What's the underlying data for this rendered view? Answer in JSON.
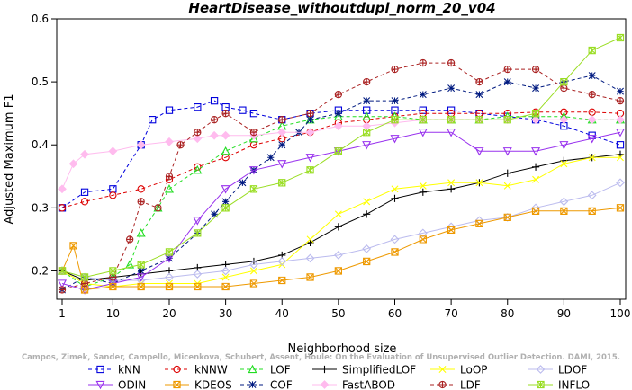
{
  "chart_data": {
    "type": "line",
    "title": "HeartDisease_withoutdupl_norm_20_v04",
    "xlabel": "Neighborhood size",
    "ylabel": "Adjusted Maximum F1",
    "xlim": [
      1,
      100
    ],
    "ylim": [
      0.155,
      0.6
    ],
    "xticks": [
      1,
      10,
      20,
      30,
      40,
      50,
      60,
      70,
      80,
      90,
      100
    ],
    "yticks": [
      0.2,
      0.3,
      0.4,
      0.5,
      0.6
    ],
    "grid": false,
    "legend_position": "bottom",
    "watermark": "Campos, Zimek, Sander, Campello, Micenkova, Schubert, Assent, Houle: On the Evaluation of Unsupervised Outlier Detection. DAMI, 2015.",
    "series": [
      {
        "name": "kNN",
        "color": "#0000dd",
        "marker": "square",
        "dash": "4,3",
        "x": [
          1,
          5,
          10,
          15,
          17,
          20,
          25,
          28,
          30,
          33,
          35,
          40,
          45,
          50,
          55,
          60,
          65,
          70,
          75,
          80,
          85,
          90,
          95,
          100
        ],
        "y": [
          0.3,
          0.325,
          0.33,
          0.4,
          0.44,
          0.455,
          0.46,
          0.47,
          0.46,
          0.455,
          0.45,
          0.44,
          0.45,
          0.455,
          0.455,
          0.455,
          0.455,
          0.455,
          0.45,
          0.445,
          0.44,
          0.43,
          0.415,
          0.4
        ]
      },
      {
        "name": "kNNW",
        "color": "#dd0000",
        "marker": "circle",
        "dash": "4,3",
        "x": [
          1,
          5,
          10,
          15,
          20,
          25,
          30,
          35,
          40,
          45,
          50,
          55,
          60,
          65,
          70,
          75,
          80,
          85,
          90,
          95,
          100
        ],
        "y": [
          0.3,
          0.31,
          0.32,
          0.33,
          0.345,
          0.365,
          0.38,
          0.4,
          0.41,
          0.42,
          0.435,
          0.44,
          0.445,
          0.45,
          0.45,
          0.45,
          0.45,
          0.452,
          0.452,
          0.452,
          0.45
        ]
      },
      {
        "name": "LOF",
        "color": "#22dd22",
        "marker": "triangle-up",
        "dash": "4,3",
        "x": [
          1,
          5,
          10,
          13,
          15,
          18,
          20,
          25,
          30,
          35,
          40,
          45,
          50,
          55,
          60,
          65,
          70,
          75,
          80,
          85,
          90,
          95,
          100
        ],
        "y": [
          0.2,
          0.175,
          0.19,
          0.21,
          0.26,
          0.3,
          0.33,
          0.36,
          0.39,
          0.41,
          0.43,
          0.44,
          0.445,
          0.445,
          0.445,
          0.44,
          0.44,
          0.44,
          0.445,
          0.445,
          0.445,
          0.44,
          0.44
        ]
      },
      {
        "name": "COF",
        "color": "#001a80",
        "marker": "star",
        "dash": "4,3",
        "x": [
          1,
          5,
          10,
          15,
          20,
          25,
          28,
          30,
          33,
          35,
          38,
          40,
          43,
          45,
          50,
          55,
          60,
          65,
          70,
          75,
          80,
          85,
          90,
          95,
          100
        ],
        "y": [
          0.17,
          0.19,
          0.18,
          0.2,
          0.22,
          0.26,
          0.29,
          0.31,
          0.34,
          0.36,
          0.38,
          0.4,
          0.42,
          0.44,
          0.45,
          0.47,
          0.47,
          0.48,
          0.49,
          0.48,
          0.5,
          0.49,
          0.5,
          0.51,
          0.485
        ]
      },
      {
        "name": "SimplifiedLOF",
        "color": "#000000",
        "marker": "plus",
        "dash": "none",
        "x": [
          1,
          5,
          10,
          15,
          20,
          25,
          30,
          35,
          40,
          45,
          50,
          55,
          60,
          65,
          70,
          75,
          80,
          85,
          90,
          95,
          100
        ],
        "y": [
          0.2,
          0.185,
          0.19,
          0.195,
          0.2,
          0.205,
          0.21,
          0.215,
          0.225,
          0.245,
          0.27,
          0.29,
          0.315,
          0.325,
          0.33,
          0.34,
          0.355,
          0.365,
          0.375,
          0.38,
          0.385
        ]
      },
      {
        "name": "LoOP",
        "color": "#ffff00",
        "marker": "cross",
        "dash": "none",
        "x": [
          1,
          5,
          10,
          15,
          20,
          25,
          30,
          35,
          40,
          45,
          50,
          55,
          60,
          65,
          70,
          75,
          80,
          85,
          90,
          95,
          100
        ],
        "y": [
          0.2,
          0.18,
          0.175,
          0.18,
          0.18,
          0.18,
          0.19,
          0.2,
          0.21,
          0.25,
          0.29,
          0.31,
          0.33,
          0.335,
          0.34,
          0.34,
          0.335,
          0.345,
          0.37,
          0.38,
          0.38
        ]
      },
      {
        "name": "LDOF",
        "color": "#bbbbee",
        "marker": "diamond",
        "dash": "none",
        "x": [
          1,
          5,
          10,
          15,
          20,
          25,
          30,
          35,
          40,
          45,
          50,
          55,
          60,
          65,
          70,
          75,
          80,
          85,
          90,
          95,
          100
        ],
        "y": [
          0.2,
          0.19,
          0.185,
          0.185,
          0.19,
          0.195,
          0.2,
          0.21,
          0.215,
          0.22,
          0.225,
          0.235,
          0.25,
          0.26,
          0.27,
          0.28,
          0.285,
          0.3,
          0.31,
          0.32,
          0.34
        ]
      },
      {
        "name": "ODIN",
        "color": "#9933ee",
        "marker": "triangle-down",
        "dash": "none",
        "x": [
          1,
          5,
          10,
          15,
          20,
          25,
          30,
          35,
          40,
          45,
          50,
          55,
          60,
          65,
          70,
          75,
          80,
          85,
          90,
          95,
          100
        ],
        "y": [
          0.18,
          0.17,
          0.18,
          0.19,
          0.22,
          0.28,
          0.33,
          0.36,
          0.37,
          0.38,
          0.39,
          0.4,
          0.41,
          0.42,
          0.42,
          0.39,
          0.39,
          0.39,
          0.4,
          0.41,
          0.42
        ]
      },
      {
        "name": "KDEOS",
        "color": "#ee9900",
        "marker": "square-x",
        "dash": "none",
        "x": [
          1,
          3,
          5,
          10,
          15,
          20,
          25,
          30,
          35,
          40,
          45,
          50,
          55,
          60,
          65,
          70,
          75,
          80,
          85,
          90,
          95,
          100
        ],
        "y": [
          0.2,
          0.24,
          0.17,
          0.175,
          0.175,
          0.175,
          0.175,
          0.175,
          0.18,
          0.185,
          0.19,
          0.2,
          0.215,
          0.23,
          0.25,
          0.265,
          0.275,
          0.285,
          0.295,
          0.295,
          0.295,
          0.3
        ]
      },
      {
        "name": "FastABOD",
        "color": "#ffbbee",
        "marker": "diamond-filled",
        "dash": "none",
        "x": [
          1,
          3,
          5,
          10,
          15,
          20,
          25,
          28,
          30,
          35,
          40,
          45,
          50,
          55,
          60,
          65,
          70,
          75,
          80,
          85,
          90,
          95,
          100
        ],
        "y": [
          0.33,
          0.37,
          0.385,
          0.39,
          0.4,
          0.405,
          0.41,
          0.415,
          0.415,
          0.415,
          0.42,
          0.42,
          0.43,
          0.43,
          0.435,
          0.44,
          0.44,
          0.44,
          0.44,
          0.44,
          0.44,
          0.44,
          0.44
        ]
      },
      {
        "name": "LDF",
        "color": "#aa2222",
        "marker": "circle-plus",
        "dash": "4,3",
        "x": [
          1,
          5,
          10,
          13,
          15,
          18,
          20,
          22,
          25,
          28,
          30,
          35,
          40,
          45,
          50,
          55,
          60,
          65,
          70,
          75,
          80,
          85,
          90,
          95,
          100
        ],
        "y": [
          0.17,
          0.18,
          0.19,
          0.25,
          0.31,
          0.3,
          0.35,
          0.4,
          0.42,
          0.44,
          0.45,
          0.42,
          0.44,
          0.45,
          0.48,
          0.5,
          0.52,
          0.53,
          0.53,
          0.5,
          0.52,
          0.52,
          0.49,
          0.48,
          0.47
        ]
      },
      {
        "name": "INFLO",
        "color": "#99dd22",
        "marker": "square-star",
        "dash": "none",
        "x": [
          1,
          5,
          10,
          15,
          20,
          25,
          30,
          35,
          40,
          45,
          50,
          55,
          60,
          65,
          70,
          75,
          80,
          85,
          90,
          95,
          100
        ],
        "y": [
          0.2,
          0.19,
          0.2,
          0.21,
          0.23,
          0.26,
          0.3,
          0.33,
          0.34,
          0.36,
          0.39,
          0.42,
          0.44,
          0.44,
          0.44,
          0.44,
          0.44,
          0.45,
          0.5,
          0.55,
          0.57
        ]
      }
    ]
  }
}
